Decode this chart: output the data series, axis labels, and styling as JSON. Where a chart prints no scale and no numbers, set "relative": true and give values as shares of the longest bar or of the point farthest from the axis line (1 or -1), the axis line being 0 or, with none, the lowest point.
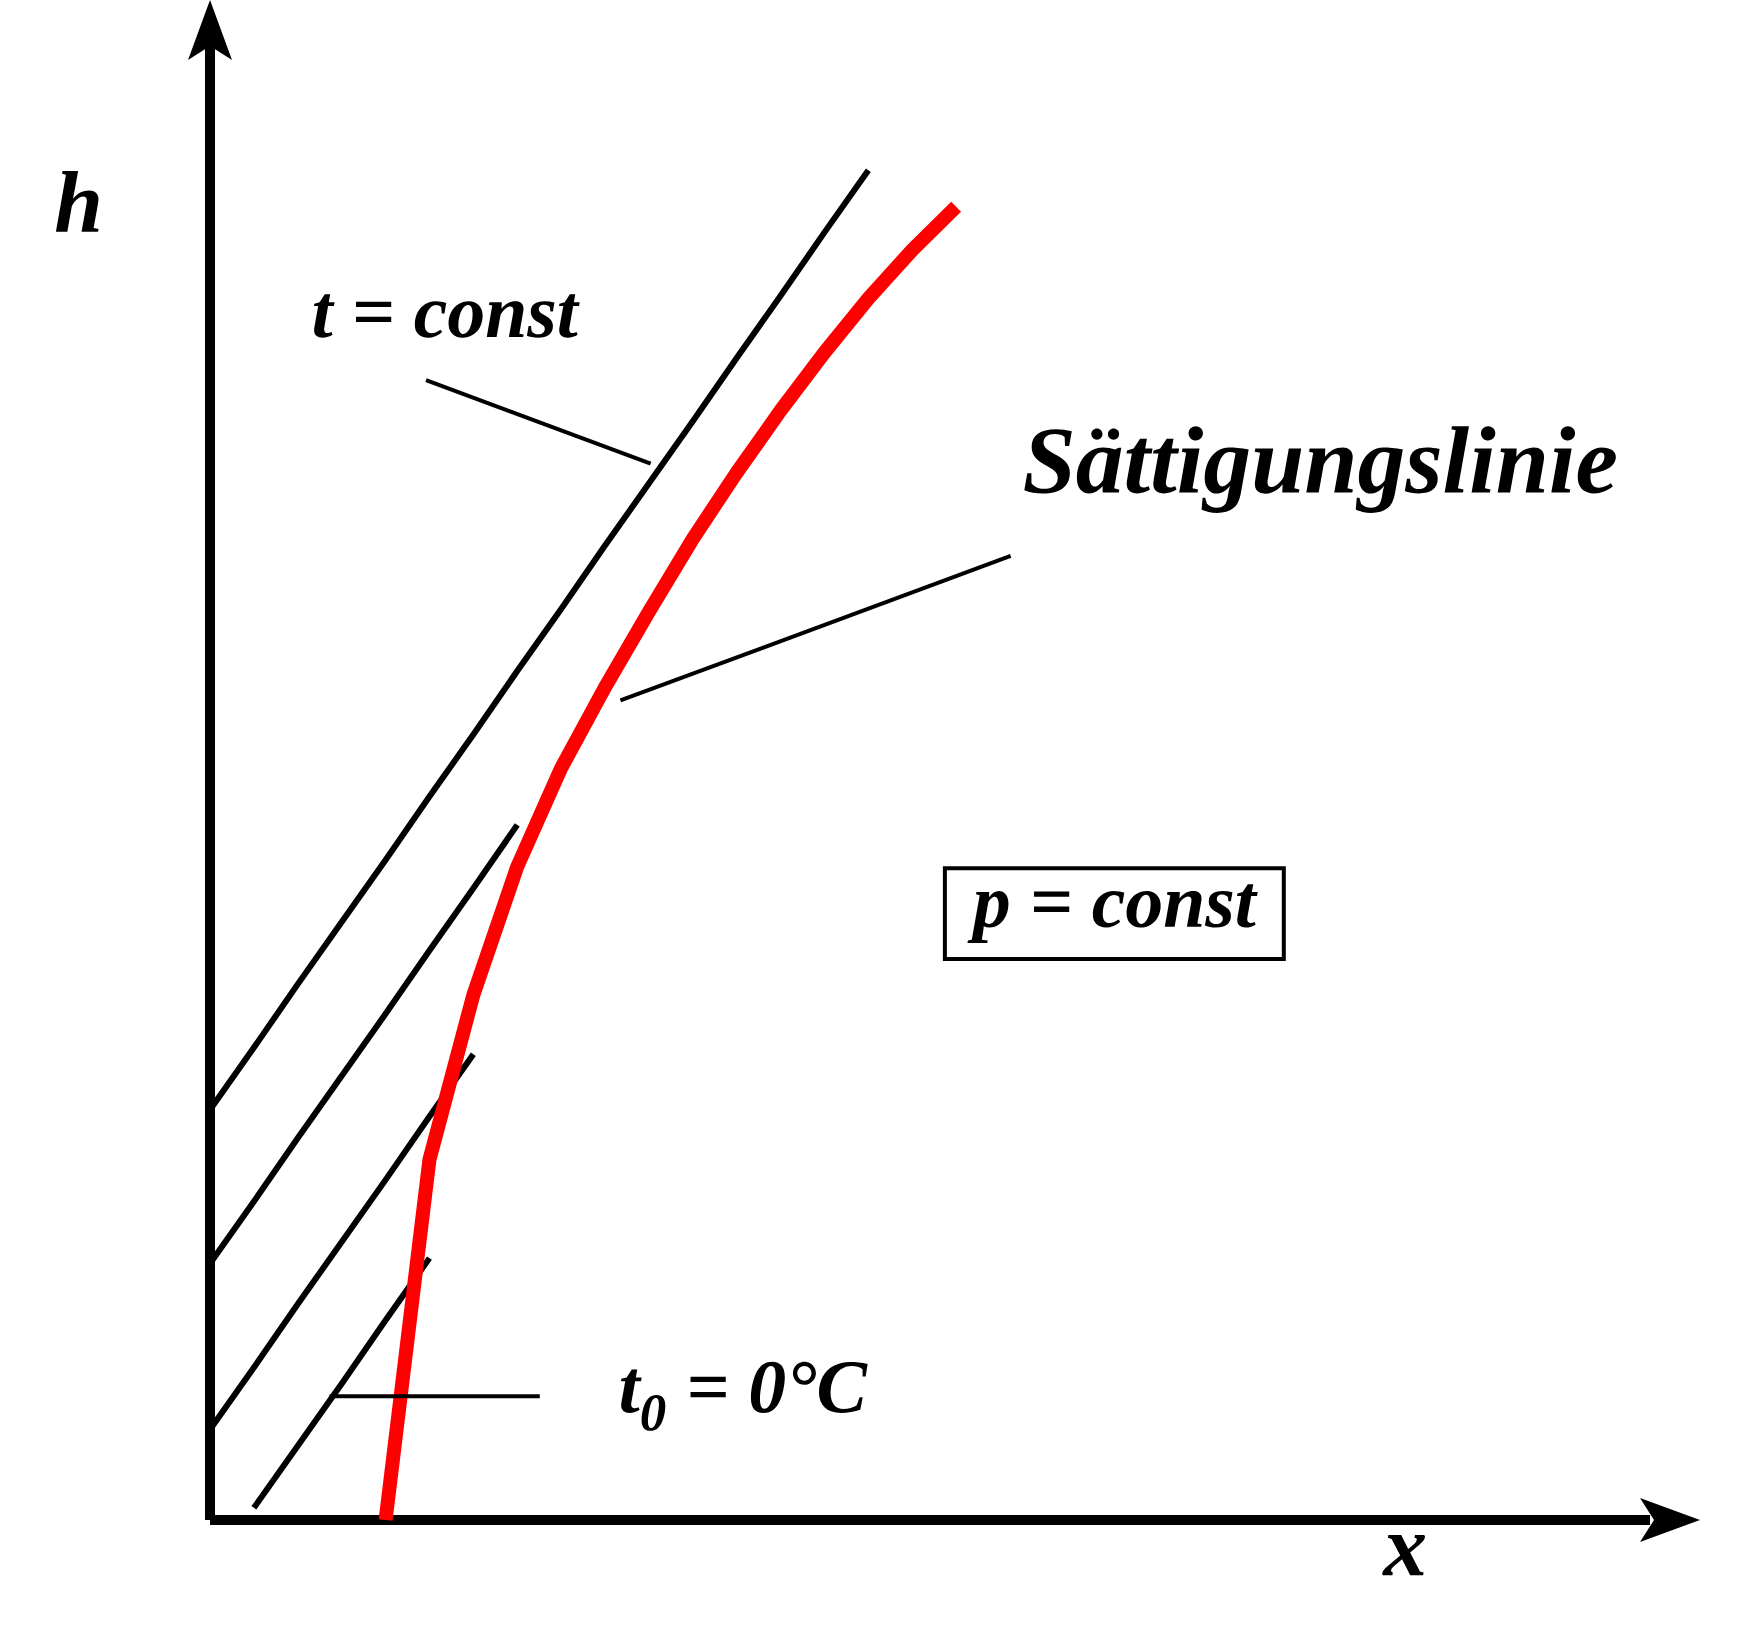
{
  "chart_data": {
    "type": "line",
    "relative": true,
    "xlabel": "x",
    "ylabel": "h",
    "tick_labels": false,
    "categories": [
      null,
      null,
      null,
      null,
      null,
      null,
      null,
      null,
      null,
      null,
      null,
      null,
      null,
      null,
      null,
      null,
      null,
      null
    ],
    "series": [
      {
        "color": "#000000",
        "values": [
          0.304,
          0.35,
          0.397,
          0.443,
          0.489,
          0.536,
          0.582,
          0.629,
          0.675,
          0.722,
          0.768,
          0.814,
          0.861,
          0.907,
          0.954,
          1.0,
          null,
          null
        ]
      },
      {
        "color": "#000000",
        "values": [
          0.19,
          0.236,
          0.283,
          0.329,
          0.375,
          0.422,
          0.468,
          0.515,
          null,
          null,
          null,
          null,
          null,
          null,
          null,
          null,
          null,
          null
        ]
      },
      {
        "color": "#000000",
        "values": [
          0.067,
          0.113,
          0.16,
          0.206,
          0.252,
          0.299,
          0.345,
          null,
          null,
          null,
          null,
          null,
          null,
          null,
          null,
          null,
          null,
          null
        ]
      },
      {
        "color": "#000000",
        "values": [
          null,
          0.009,
          0.055,
          0.101,
          0.148,
          0.194,
          null,
          null,
          null,
          null,
          null,
          null,
          null,
          null,
          null,
          null,
          null,
          null
        ]
      },
      {
        "color": "#ff0000",
        "values": [
          null,
          null,
          null,
          null,
          0,
          0.267,
          0.389,
          0.484,
          0.557,
          0.617,
          0.673,
          0.727,
          0.776,
          0.822,
          0.865,
          0.905,
          0.941,
          0.973
        ]
      }
    ],
    "annotations": [
      "t = const",
      "Sättigungslinie",
      "t$_{0}$ = 0°C",
      "p = const"
    ]
  }
}
